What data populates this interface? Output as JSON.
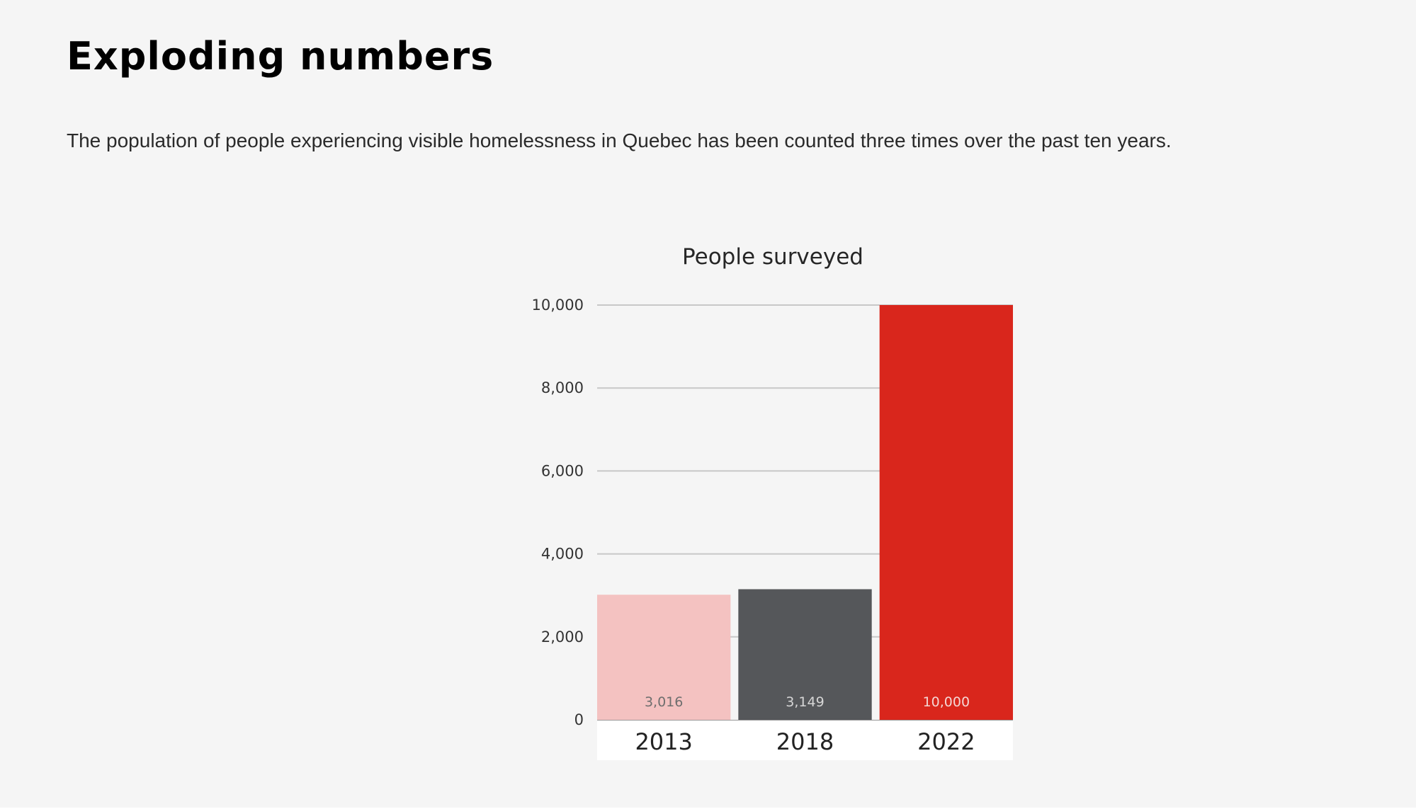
{
  "page": {
    "heading": "Exploding numbers",
    "intro": "The population of people experiencing visible homelessness in Quebec has been counted three times over the past ten years."
  },
  "chart_data": {
    "type": "bar",
    "title": "People surveyed",
    "xlabel": "",
    "ylabel": "",
    "categories": [
      "2013",
      "2018",
      "2022"
    ],
    "values": [
      3016,
      3149,
      10000
    ],
    "data_labels": [
      "3,016",
      "3,149",
      "10,000"
    ],
    "bar_colors": [
      "#f4c2c1",
      "#55575a",
      "#d9261c"
    ],
    "data_label_colors": [
      "#6e6e6e",
      "#d6d6d6",
      "#f4d6d4"
    ],
    "yticks": [
      0,
      2000,
      4000,
      6000,
      8000,
      10000
    ],
    "ytick_labels": [
      "0",
      "2,000",
      "4,000",
      "6,000",
      "8,000",
      "10,000"
    ],
    "ylim": [
      0,
      10000
    ],
    "grid": true,
    "legend": "none"
  }
}
